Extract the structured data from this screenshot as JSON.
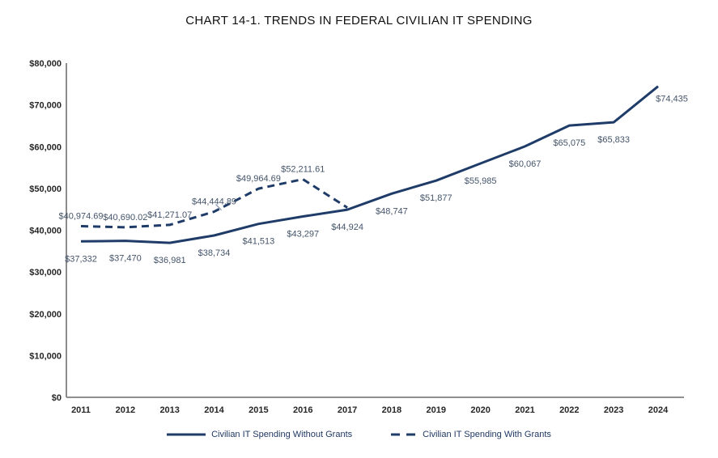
{
  "colors": {
    "line": "#1f3c69",
    "axis": "#7f7f7f",
    "tick_label": "#262626",
    "data_label": "#44546a",
    "leader": "#8496ab",
    "legend_text": "#1f3864"
  },
  "chart_data": {
    "type": "line",
    "title": "CHART 14-1.  TRENDS IN FEDERAL CIVILIAN IT SPENDING",
    "x_categories": [
      "2011",
      "2012",
      "2013",
      "2014",
      "2015",
      "2016",
      "2017",
      "2018",
      "2019",
      "2020",
      "2021",
      "2022",
      "2023",
      "2024"
    ],
    "ylim": [
      0,
      80000
    ],
    "ytick_step": 10000,
    "ytick_labels": [
      "$0",
      "$10,000",
      "$20,000",
      "$30,000",
      "$40,000",
      "$50,000",
      "$60,000",
      "$70,000",
      "$80,000"
    ],
    "grid": false,
    "legend_position": "bottom",
    "series": [
      {
        "name": "Civilian IT Spending Without Grants",
        "style": "solid",
        "label_position": "below",
        "values": [
          37332,
          37470,
          36981,
          38734,
          41513,
          43297,
          44924,
          48747,
          51877,
          55985,
          60067,
          65075,
          65833,
          74435
        ],
        "labels": [
          "$37,332",
          "$37,470",
          "$36,981",
          "$38,734",
          "$41,513",
          "$43,297",
          "$44,924",
          "$48,747",
          "$51,877",
          "$55,985",
          "$60,067",
          "$65,075",
          "$65,833",
          "$74,435"
        ],
        "label_offset_overrides": {
          "13": [
            17,
            15
          ]
        }
      },
      {
        "name": "Civilian IT Spending With Grants",
        "style": "dashed",
        "label_position": "above",
        "values": [
          40974.69,
          40690.02,
          41271.07,
          44444.89,
          49964.69,
          52211.61,
          45400,
          null,
          null,
          null,
          null,
          null,
          null,
          null
        ],
        "labels": [
          "$40,974.69",
          "$40,690.02",
          "$41,271.07",
          "$44,444.89",
          "$49,964.69",
          "$52,211.61",
          null,
          null,
          null,
          null,
          null,
          null,
          null,
          null
        ],
        "leader_at_index": 3
      }
    ]
  }
}
